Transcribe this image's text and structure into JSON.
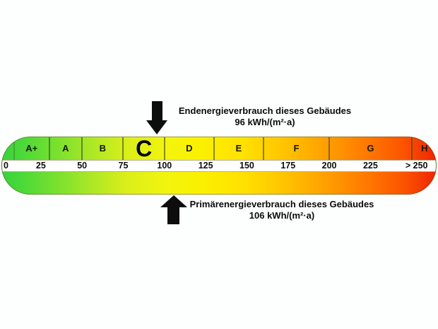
{
  "energy_label": {
    "classes": [
      {
        "label": "A+",
        "min": 0,
        "max": 30
      },
      {
        "label": "A",
        "min": 30,
        "max": 50
      },
      {
        "label": "B",
        "min": 50,
        "max": 75
      },
      {
        "label": "C",
        "min": 75,
        "max": 100,
        "current": true
      },
      {
        "label": "D",
        "min": 100,
        "max": 130
      },
      {
        "label": "E",
        "min": 130,
        "max": 160
      },
      {
        "label": "F",
        "min": 160,
        "max": 200
      },
      {
        "label": "G",
        "min": 200,
        "max": 250
      },
      {
        "label": "H",
        "min": 250,
        "max": null
      }
    ],
    "ticks": [
      "0",
      "25",
      "50",
      "75",
      "100",
      "125",
      "150",
      "175",
      "200",
      "225",
      "> 250"
    ],
    "end_energy": {
      "label_line1": "Endenergieverbrauch dieses Gebäudes",
      "label_line2": "96 kWh/(m²·a)",
      "value": 96
    },
    "primary_energy": {
      "label_line1": "Primärenergieverbrauch dieses Gebäudes",
      "label_line2": "106 kWh/(m²·a)",
      "value": 106
    },
    "colors": {
      "scale_left_green": "#38d33c",
      "scale_mid_yellow": "#fbf000",
      "scale_right_red": "#ee2400",
      "strip_background": "#ffffff",
      "arrow_black": "#0d0d0d"
    }
  },
  "chart_data": {
    "type": "bar",
    "subtype": "energy-efficiency-gauge",
    "title": "",
    "orientation": "horizontal",
    "axis": {
      "unit": "kWh/(m²·a)",
      "min": 0,
      "max": 250,
      "tick_interval": 25,
      "tick_labels": [
        "0",
        "25",
        "50",
        "75",
        "100",
        "125",
        "150",
        "175",
        "200",
        "225",
        "> 250"
      ]
    },
    "bands": [
      {
        "class": "A+",
        "range": [
          0,
          30
        ]
      },
      {
        "class": "A",
        "range": [
          30,
          50
        ]
      },
      {
        "class": "B",
        "range": [
          50,
          75
        ]
      },
      {
        "class": "C",
        "range": [
          75,
          100
        ]
      },
      {
        "class": "D",
        "range": [
          100,
          130
        ]
      },
      {
        "class": "E",
        "range": [
          130,
          160
        ]
      },
      {
        "class": "F",
        "range": [
          160,
          200
        ]
      },
      {
        "class": "G",
        "range": [
          200,
          250
        ]
      },
      {
        "class": "H",
        "range": [
          250,
          null
        ]
      }
    ],
    "highlighted_class": "C",
    "markers": [
      {
        "name": "Endenergieverbrauch dieses Gebäudes",
        "value": 96,
        "unit": "kWh/(m²·a)",
        "arrow": "down",
        "side": "above"
      },
      {
        "name": "Primärenergieverbrauch dieses Gebäudes",
        "value": 106,
        "unit": "kWh/(m²·a)",
        "arrow": "up",
        "side": "below"
      }
    ],
    "gradient": [
      "green",
      "yellow-green",
      "yellow",
      "orange",
      "red"
    ],
    "legend_position": "none",
    "grid": false
  }
}
